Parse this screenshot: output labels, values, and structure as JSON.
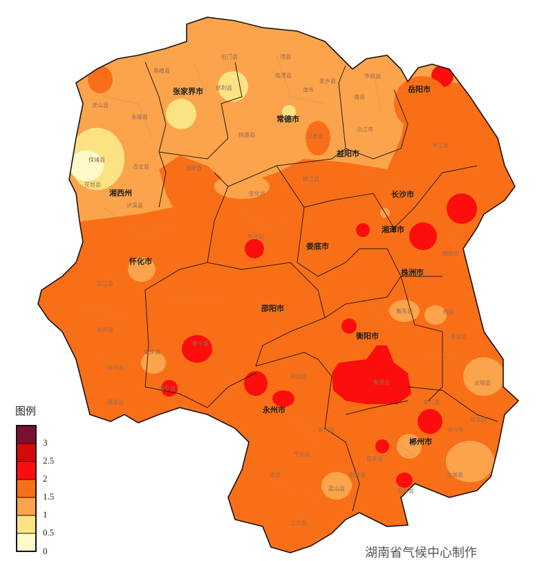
{
  "map": {
    "region": "湖南省",
    "colors": {
      "class_0_0.5": "#fefac8",
      "class_0.5_1": "#fbe384",
      "class_1_1.5": "#fba44c",
      "class_1.5_2": "#f96f17",
      "class_2_2.5": "#fb0e0c",
      "class_2.5_3": "#d20a0a",
      "class_3_plus": "#7a1030"
    },
    "cities": [
      "岳阳市",
      "张家界市",
      "常德市",
      "益阳市",
      "湘西州",
      "长沙市",
      "湘潭市",
      "娄底市",
      "怀化市",
      "株洲市",
      "邵阳市",
      "衡阳市",
      "永州市",
      "郴州市"
    ],
    "counties": [
      "石门县",
      "澧县",
      "桑植县",
      "慈利县",
      "临澧县",
      "安乡县",
      "华容县",
      "津市",
      "龙山县",
      "永顺县",
      "南县",
      "沅江市",
      "桃源县",
      "汉寿县",
      "保靖县",
      "古丈县",
      "花垣县",
      "泸溪县",
      "沅陵县",
      "安化县",
      "桃江县",
      "衡东县",
      "攸县",
      "炎陵县",
      "宜章县",
      "嘉禾县",
      "蓝山县",
      "宁远县",
      "道县",
      "江华县",
      "新宁县",
      "城步县",
      "绥宁县",
      "靖州县",
      "通道县",
      "会同县",
      "芷江县",
      "新化县",
      "安仁县",
      "资兴市",
      "汝城县",
      "桂东县",
      "衡南县",
      "祁阳县",
      "新田县",
      "临武县",
      "平江县",
      "茶陵县",
      "醴陵市"
    ]
  },
  "legend": {
    "title": "图例",
    "labels": [
      "3",
      "2.5",
      "2",
      "1.5",
      "1",
      "0.5",
      "0"
    ]
  },
  "footer": "湖南省气候中心制作"
}
